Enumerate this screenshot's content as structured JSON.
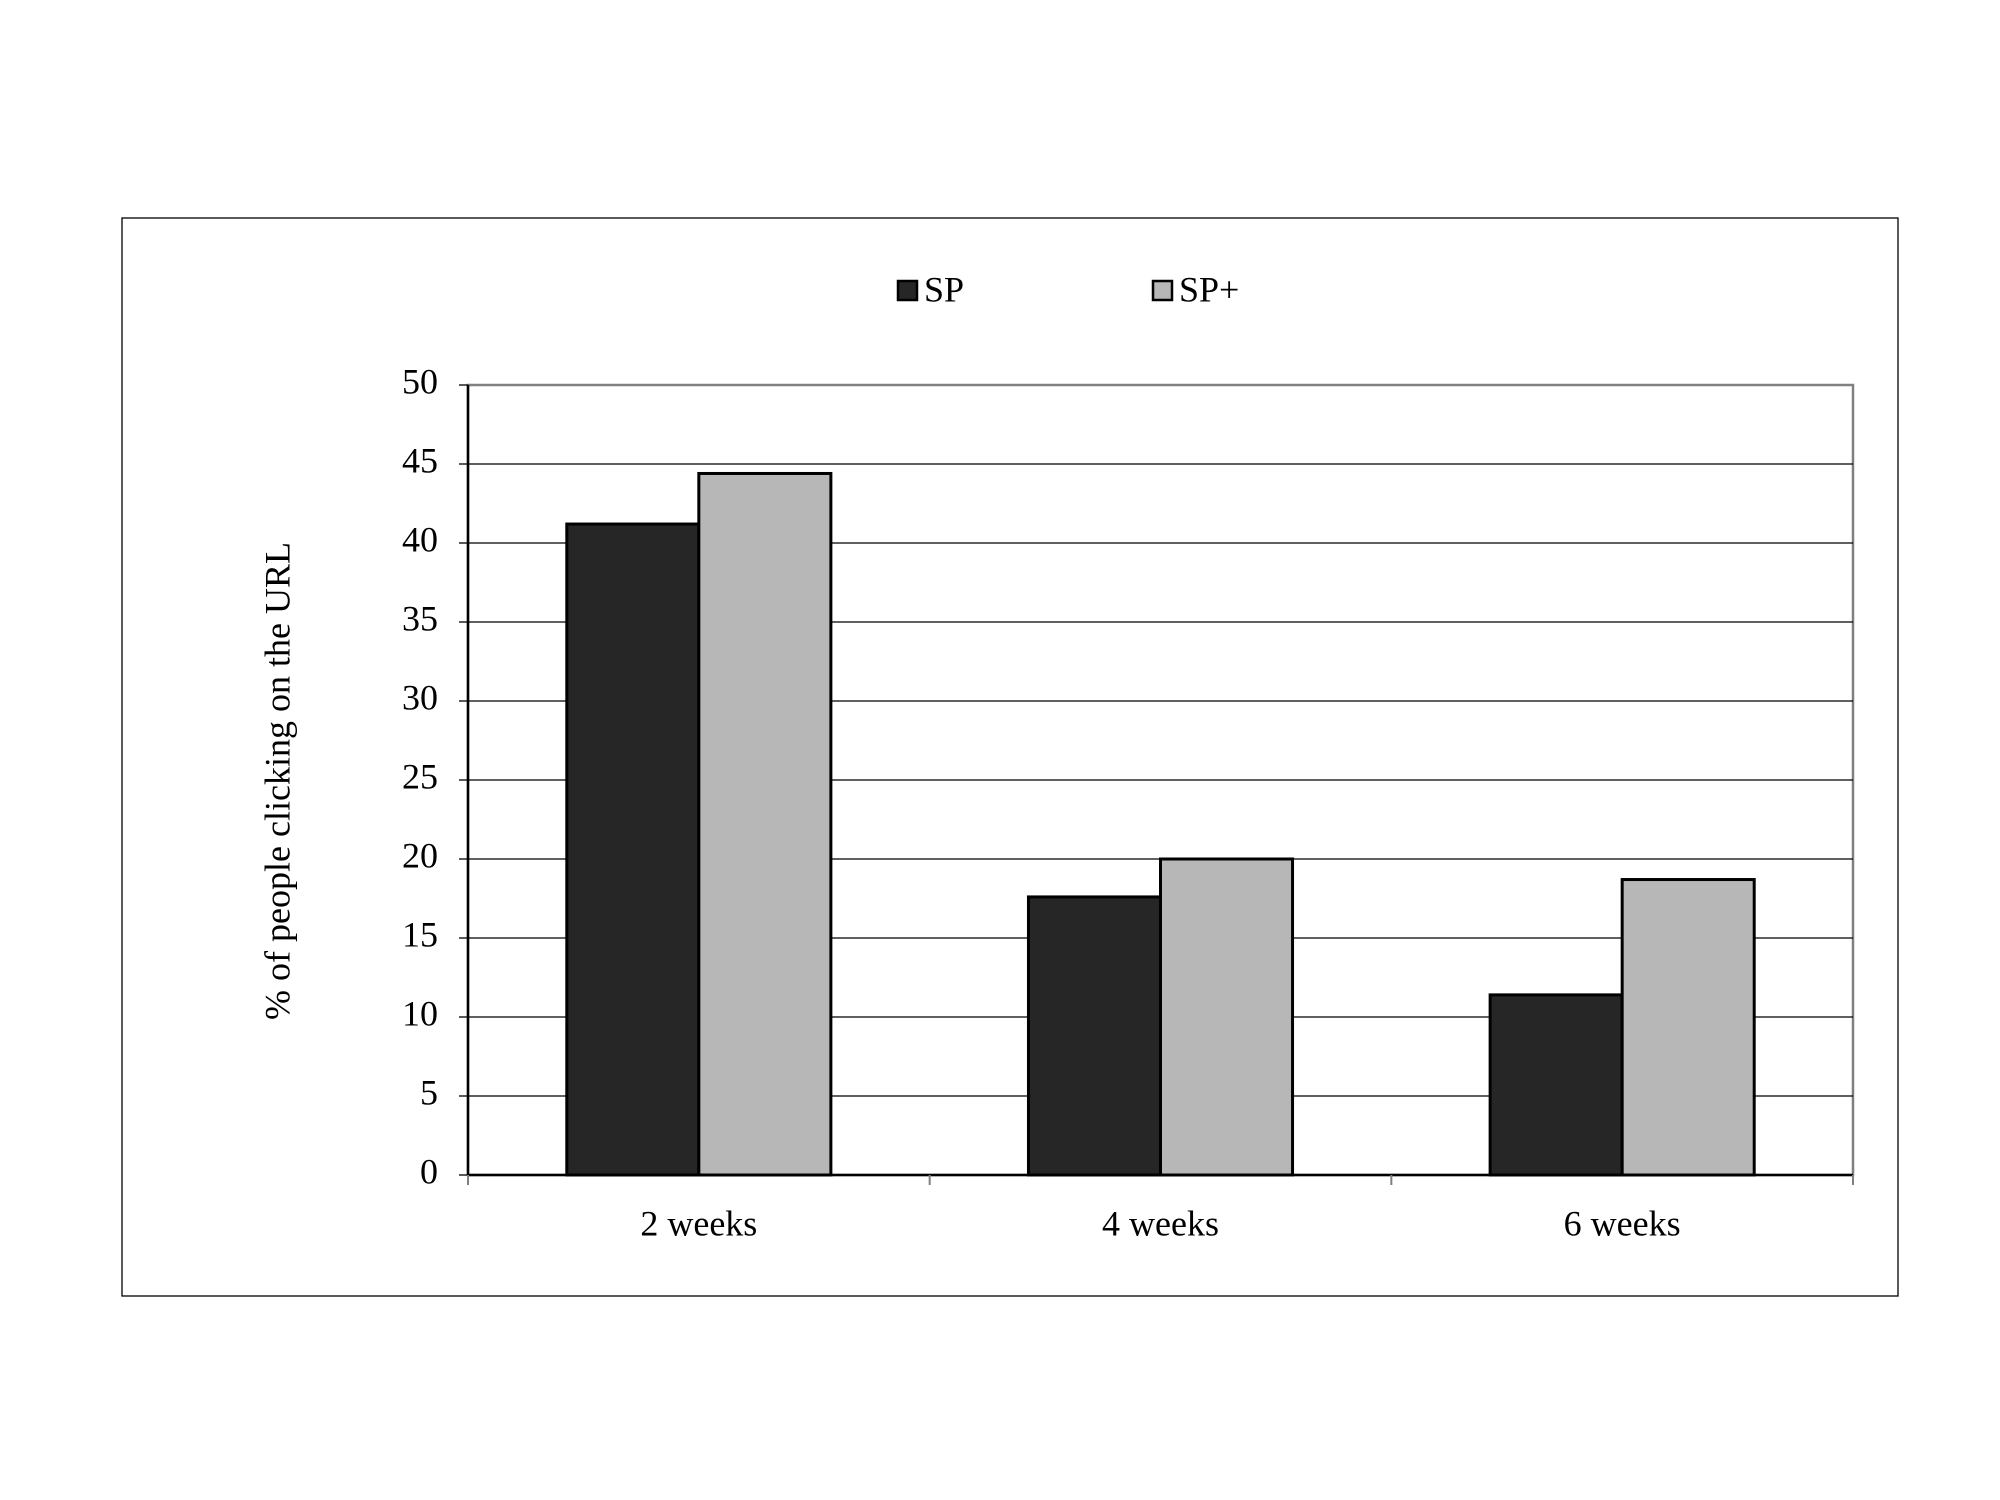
{
  "chart_data": {
    "type": "bar",
    "y_label": "% of people clicking on the URL",
    "categories": [
      "2 weeks",
      "4 weeks",
      "6 weeks"
    ],
    "series": [
      {
        "name": "SP",
        "color": "#262626",
        "values": [
          41.2,
          17.6,
          11.4
        ]
      },
      {
        "name": "SP+",
        "color": "#b7b7b7",
        "values": [
          44.4,
          20.0,
          18.7
        ]
      }
    ],
    "ylim": [
      0,
      50
    ],
    "yticks": [
      0,
      5,
      10,
      15,
      20,
      25,
      30,
      35,
      40,
      45,
      50
    ],
    "grid": true
  }
}
